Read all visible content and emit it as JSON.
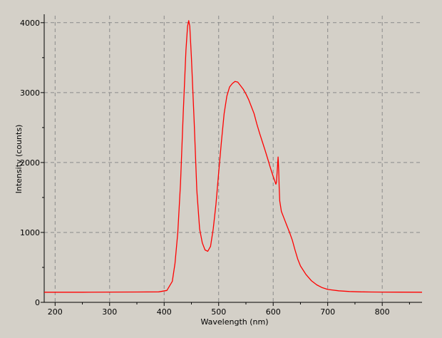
{
  "chart_data": {
    "type": "line",
    "title": "",
    "xlabel": "Wavelength (nm)",
    "ylabel": "Intensity (counts)",
    "xlim": [
      180,
      873
    ],
    "ylim": [
      0,
      4100
    ],
    "x_ticks": [
      200,
      300,
      400,
      500,
      600,
      700,
      800
    ],
    "y_ticks": [
      0,
      1000,
      2000,
      3000,
      4000
    ],
    "x_tick_labels": [
      "200",
      "300",
      "400",
      "500",
      "600",
      "700",
      "800"
    ],
    "y_tick_labels": [
      "0",
      "1000",
      "2000",
      "3000",
      "4000"
    ],
    "grid": true,
    "grid_style": "dashed",
    "background_color": "#d4d0c8",
    "line_color": "#ff0000",
    "series": [
      {
        "x": [
          180,
          250,
          300,
          350,
          390,
          405,
          415,
          420,
          425,
          430,
          435,
          440,
          443,
          445,
          447,
          450,
          455,
          460,
          465,
          470,
          475,
          480,
          485,
          490,
          495,
          500,
          505,
          510,
          515,
          520,
          525,
          530,
          535,
          540,
          545,
          550,
          555,
          560,
          565,
          570,
          575,
          580,
          585,
          590,
          595,
          600,
          605,
          606,
          608,
          609,
          610,
          611,
          612,
          615,
          620,
          625,
          630,
          635,
          640,
          645,
          650,
          660,
          670,
          680,
          690,
          700,
          720,
          740,
          760,
          780,
          800,
          830,
          873
        ],
        "y": [
          145,
          145,
          147,
          148,
          150,
          170,
          300,
          560,
          1000,
          1700,
          2700,
          3600,
          3950,
          4030,
          3950,
          3500,
          2600,
          1600,
          1050,
          850,
          750,
          730,
          800,
          1050,
          1400,
          1850,
          2300,
          2700,
          2950,
          3080,
          3130,
          3160,
          3150,
          3100,
          3050,
          2980,
          2900,
          2800,
          2700,
          2550,
          2420,
          2300,
          2180,
          2050,
          1920,
          1800,
          1690,
          1720,
          1950,
          2080,
          1900,
          1650,
          1450,
          1300,
          1200,
          1100,
          1000,
          890,
          750,
          620,
          520,
          400,
          310,
          250,
          210,
          185,
          165,
          155,
          150,
          148,
          147,
          146,
          145
        ]
      }
    ]
  }
}
